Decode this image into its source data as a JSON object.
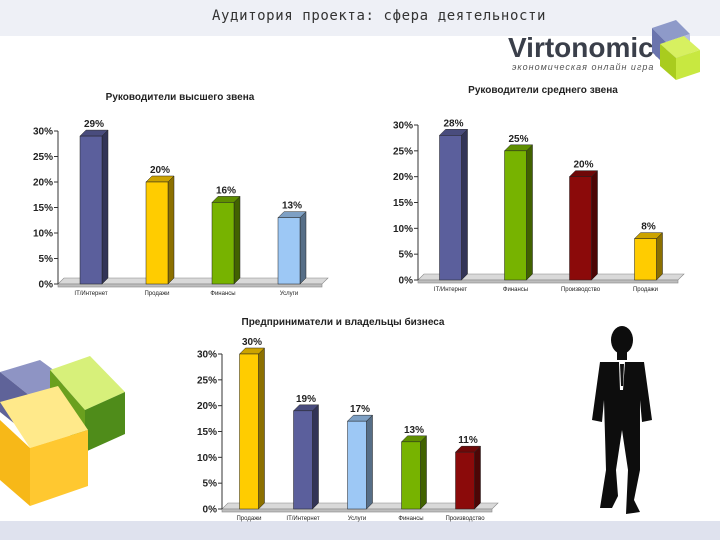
{
  "slide": {
    "title": "Аудитория проекта: сфера деятельности",
    "logo_name": "Virtonomica",
    "logo_tagline": "экономическая онлайн игра"
  },
  "colors": {
    "navy": "#5b5f9c",
    "gold": "#ffcc00",
    "green": "#77b300",
    "skyblue": "#9dc8f5",
    "darkred": "#8b0a0a"
  },
  "chart_data": [
    {
      "type": "bar",
      "title": "Руководители высшего звена",
      "categories": [
        "IT/Интернет",
        "Продажи",
        "Финансы",
        "Услуги"
      ],
      "values": [
        29,
        20,
        16,
        13
      ],
      "colors": [
        "#5b5f9c",
        "#ffcc00",
        "#77b300",
        "#9dc8f5"
      ],
      "ylim": [
        0,
        30
      ],
      "yticks": [
        0,
        5,
        10,
        15,
        20,
        25,
        30
      ],
      "unit": "%"
    },
    {
      "type": "bar",
      "title": "Руководители среднего звена",
      "categories": [
        "IT/Интернет",
        "Финансы",
        "Производство",
        "Продажи"
      ],
      "values": [
        28,
        25,
        20,
        8
      ],
      "colors": [
        "#5b5f9c",
        "#77b300",
        "#8b0a0a",
        "#ffcc00"
      ],
      "ylim": [
        0,
        30
      ],
      "yticks": [
        0,
        5,
        10,
        15,
        20,
        25,
        30
      ],
      "unit": "%"
    },
    {
      "type": "bar",
      "title": "Предприниматели и владельцы бизнеса",
      "categories": [
        "Продажи",
        "IT/Интернет",
        "Услуги",
        "Финансы",
        "Производство"
      ],
      "values": [
        30,
        19,
        17,
        13,
        11
      ],
      "colors": [
        "#ffcc00",
        "#5b5f9c",
        "#9dc8f5",
        "#77b300",
        "#8b0a0a"
      ],
      "ylim": [
        0,
        30
      ],
      "yticks": [
        0,
        5,
        10,
        15,
        20,
        25,
        30
      ],
      "unit": "%"
    }
  ]
}
